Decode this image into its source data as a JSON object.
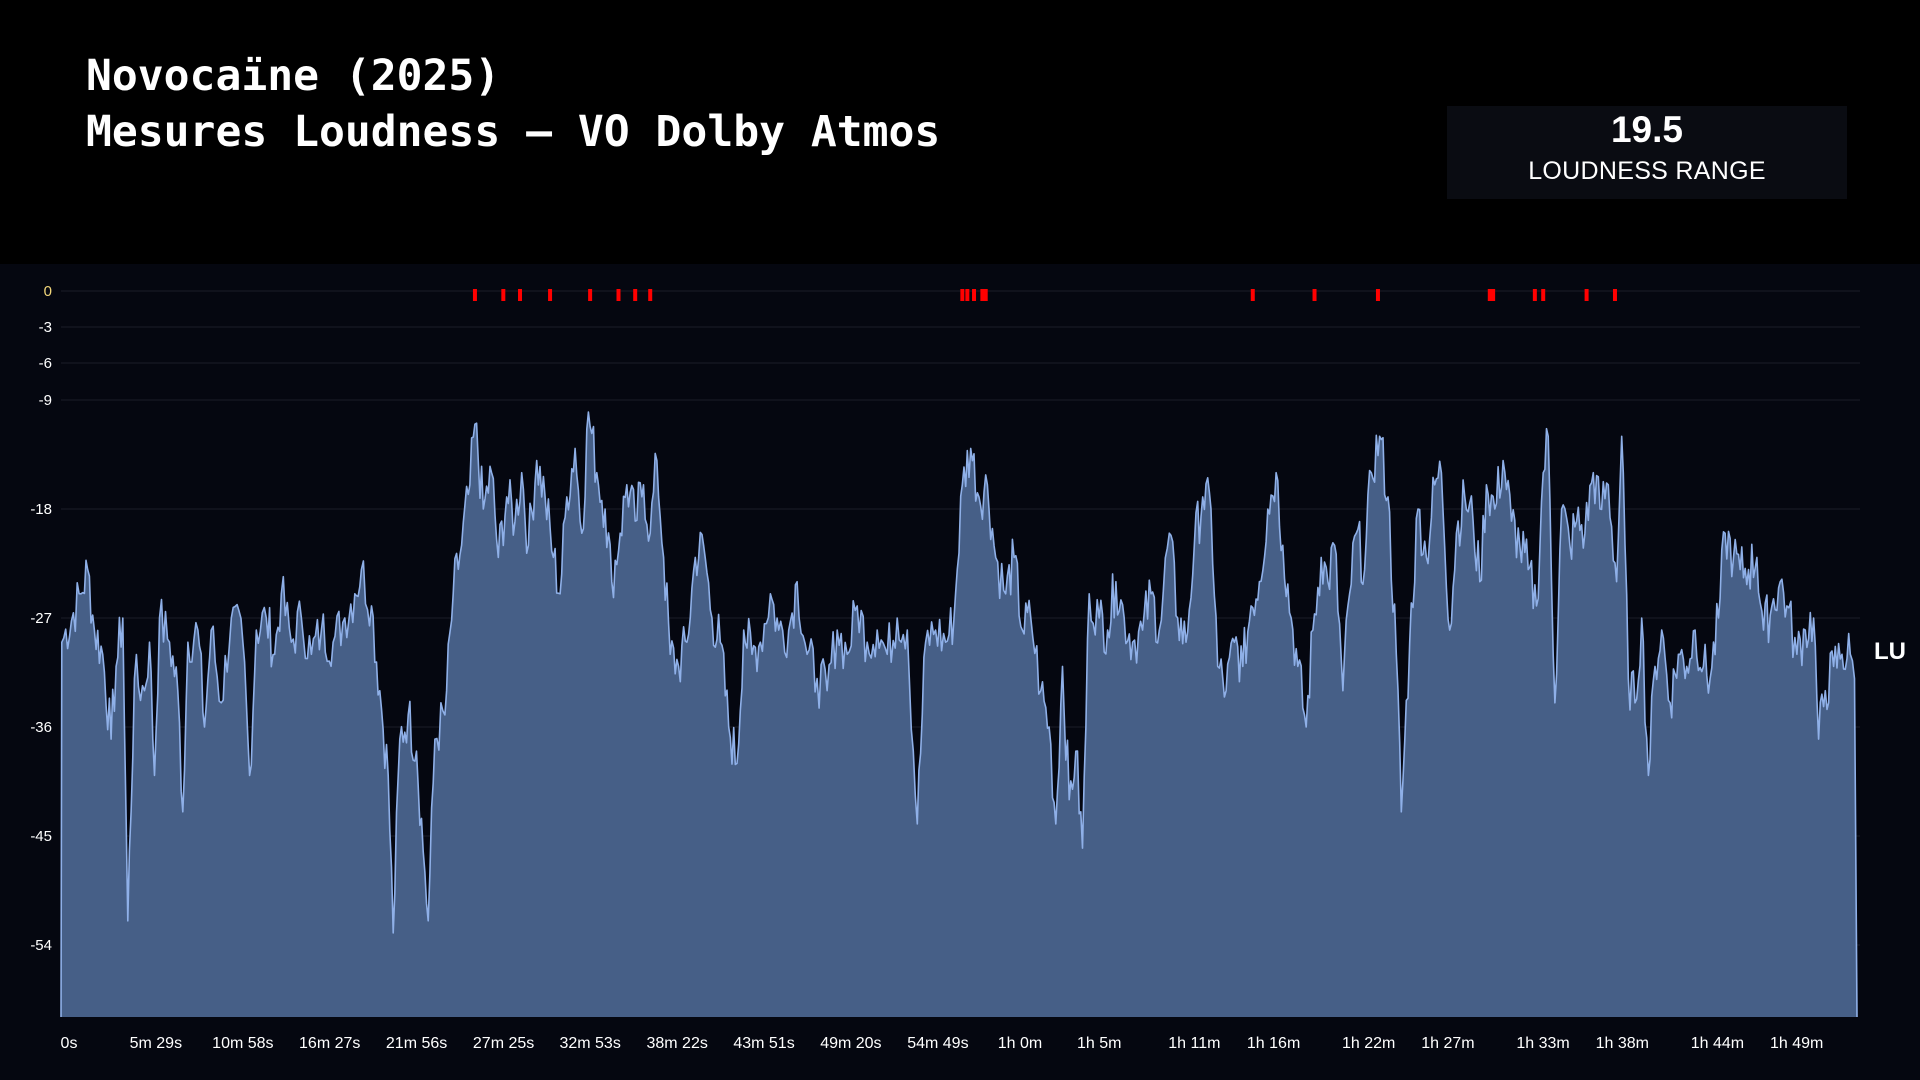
{
  "header": {
    "title_line1": "Novocaïne (2025)",
    "title_line2": "Mesures Loudness – VO Dolby Atmos"
  },
  "metric": {
    "value": "19.5",
    "label": "LOUDNESS RANGE"
  },
  "chart_data": {
    "type": "area",
    "series": [
      {
        "name": "LU",
        "color": "#8fb0e8",
        "anchors": [
          [
            0,
            -60
          ],
          [
            0.05,
            -29
          ],
          [
            1.2,
            -25
          ],
          [
            1.6,
            -23
          ],
          [
            2.0,
            -28
          ],
          [
            2.5,
            -30
          ],
          [
            3.0,
            -37
          ],
          [
            3.3,
            -31
          ],
          [
            3.7,
            -27
          ],
          [
            4.0,
            -52
          ],
          [
            4.4,
            -32
          ],
          [
            5.0,
            -33
          ],
          [
            5.3,
            -29
          ],
          [
            5.6,
            -40
          ],
          [
            5.9,
            -27
          ],
          [
            6.5,
            -29
          ],
          [
            7.0,
            -33
          ],
          [
            7.3,
            -43
          ],
          [
            7.6,
            -29
          ],
          [
            8.2,
            -28
          ],
          [
            8.6,
            -36
          ],
          [
            9.0,
            -28
          ],
          [
            9.6,
            -34
          ],
          [
            10.2,
            -27
          ],
          [
            10.9,
            -29
          ],
          [
            11.3,
            -40
          ],
          [
            11.7,
            -28
          ],
          [
            12.3,
            -27
          ],
          [
            12.8,
            -30
          ],
          [
            13.2,
            -25
          ],
          [
            13.8,
            -29
          ],
          [
            14.4,
            -27
          ],
          [
            15.0,
            -30
          ],
          [
            15.6,
            -28
          ],
          [
            16.3,
            -29
          ],
          [
            17.0,
            -27
          ],
          [
            17.6,
            -25
          ],
          [
            18.0,
            -23
          ],
          [
            18.6,
            -26
          ],
          [
            19.1,
            -33
          ],
          [
            19.6,
            -40
          ],
          [
            19.9,
            -53
          ],
          [
            20.3,
            -37
          ],
          [
            20.8,
            -35
          ],
          [
            21.3,
            -38
          ],
          [
            21.8,
            -48
          ],
          [
            22.0,
            -52
          ],
          [
            22.4,
            -37
          ],
          [
            23.0,
            -35
          ],
          [
            23.5,
            -25
          ],
          [
            24.0,
            -21
          ],
          [
            24.5,
            -16
          ],
          [
            24.8,
            -11
          ],
          [
            25.3,
            -18
          ],
          [
            25.8,
            -15
          ],
          [
            26.2,
            -22
          ],
          [
            26.7,
            -17
          ],
          [
            27.2,
            -19
          ],
          [
            27.6,
            -15
          ],
          [
            28.0,
            -21
          ],
          [
            28.5,
            -14
          ],
          [
            29.0,
            -17
          ],
          [
            29.5,
            -22
          ],
          [
            29.9,
            -25
          ],
          [
            30.3,
            -17
          ],
          [
            30.8,
            -13
          ],
          [
            31.2,
            -20
          ],
          [
            31.6,
            -10
          ],
          [
            32.1,
            -15
          ],
          [
            32.6,
            -18
          ],
          [
            33.0,
            -24
          ],
          [
            33.5,
            -20
          ],
          [
            33.9,
            -16
          ],
          [
            34.4,
            -19
          ],
          [
            34.9,
            -16
          ],
          [
            35.3,
            -20
          ],
          [
            35.7,
            -14
          ],
          [
            36.1,
            -22
          ],
          [
            36.5,
            -30
          ],
          [
            37.0,
            -31
          ],
          [
            37.5,
            -29
          ],
          [
            38.0,
            -22
          ],
          [
            38.5,
            -21
          ],
          [
            39.0,
            -27
          ],
          [
            39.5,
            -29
          ],
          [
            40.0,
            -36
          ],
          [
            40.5,
            -39
          ],
          [
            40.9,
            -28
          ],
          [
            41.4,
            -30
          ],
          [
            41.9,
            -29
          ],
          [
            42.5,
            -25
          ],
          [
            43.0,
            -28
          ],
          [
            43.6,
            -28
          ],
          [
            44.1,
            -24
          ],
          [
            44.7,
            -30
          ],
          [
            45.3,
            -32
          ],
          [
            45.9,
            -33
          ],
          [
            46.5,
            -28
          ],
          [
            47.1,
            -30
          ],
          [
            47.7,
            -26
          ],
          [
            48.3,
            -29
          ],
          [
            48.9,
            -28
          ],
          [
            49.5,
            -30
          ],
          [
            50.1,
            -27
          ],
          [
            50.7,
            -28
          ],
          [
            51.3,
            -44
          ],
          [
            51.8,
            -29
          ],
          [
            52.4,
            -28
          ],
          [
            53.0,
            -29
          ],
          [
            53.5,
            -27
          ],
          [
            54.0,
            -16
          ],
          [
            54.5,
            -13
          ],
          [
            55.0,
            -17
          ],
          [
            55.5,
            -16
          ],
          [
            56.0,
            -22
          ],
          [
            56.6,
            -25
          ],
          [
            57.1,
            -22
          ],
          [
            57.6,
            -28
          ],
          [
            58.1,
            -27
          ],
          [
            58.7,
            -33
          ],
          [
            59.2,
            -36
          ],
          [
            59.6,
            -44
          ],
          [
            60.0,
            -31
          ],
          [
            60.4,
            -42
          ],
          [
            60.8,
            -38
          ],
          [
            61.2,
            -46
          ],
          [
            61.6,
            -25
          ],
          [
            62.2,
            -27
          ],
          [
            62.7,
            -28
          ],
          [
            63.2,
            -24
          ],
          [
            63.7,
            -27
          ],
          [
            64.2,
            -29
          ],
          [
            64.8,
            -28
          ],
          [
            65.3,
            -25
          ],
          [
            65.8,
            -28
          ],
          [
            66.4,
            -20
          ],
          [
            66.9,
            -27
          ],
          [
            67.4,
            -29
          ],
          [
            67.9,
            -21
          ],
          [
            68.4,
            -17
          ],
          [
            68.9,
            -18
          ],
          [
            69.3,
            -31
          ],
          [
            69.8,
            -33
          ],
          [
            70.3,
            -29
          ],
          [
            70.8,
            -31
          ],
          [
            71.3,
            -26
          ],
          [
            71.8,
            -24
          ],
          [
            72.3,
            -18
          ],
          [
            72.8,
            -15
          ],
          [
            73.2,
            -21
          ],
          [
            73.7,
            -27
          ],
          [
            74.1,
            -31
          ],
          [
            74.6,
            -36
          ],
          [
            75.0,
            -28
          ],
          [
            75.5,
            -22
          ],
          [
            75.9,
            -24
          ],
          [
            76.3,
            -21
          ],
          [
            76.8,
            -33
          ],
          [
            77.2,
            -25
          ],
          [
            77.6,
            -20
          ],
          [
            78.1,
            -23
          ],
          [
            78.5,
            -15
          ],
          [
            79.0,
            -12
          ],
          [
            79.5,
            -17
          ],
          [
            80.0,
            -30
          ],
          [
            80.3,
            -43
          ],
          [
            80.8,
            -29
          ],
          [
            81.3,
            -18
          ],
          [
            81.8,
            -22
          ],
          [
            82.3,
            -16
          ],
          [
            82.7,
            -15
          ],
          [
            83.2,
            -28
          ],
          [
            83.6,
            -20
          ],
          [
            84.1,
            -17
          ],
          [
            84.6,
            -19
          ],
          [
            85.0,
            -24
          ],
          [
            85.4,
            -16
          ],
          [
            85.9,
            -18
          ],
          [
            86.4,
            -14
          ],
          [
            86.9,
            -19
          ],
          [
            87.4,
            -21
          ],
          [
            87.9,
            -23
          ],
          [
            88.4,
            -26
          ],
          [
            88.8,
            -15
          ],
          [
            89.1,
            -12
          ],
          [
            89.5,
            -34
          ],
          [
            89.9,
            -18
          ],
          [
            90.4,
            -21
          ],
          [
            90.8,
            -19
          ],
          [
            91.3,
            -20
          ],
          [
            91.8,
            -15
          ],
          [
            92.2,
            -18
          ],
          [
            92.7,
            -16
          ],
          [
            93.2,
            -24
          ],
          [
            93.5,
            -12
          ],
          [
            93.9,
            -32
          ],
          [
            94.3,
            -34
          ],
          [
            94.7,
            -27
          ],
          [
            95.1,
            -40
          ],
          [
            95.5,
            -31
          ],
          [
            95.9,
            -28
          ],
          [
            96.4,
            -34
          ],
          [
            96.9,
            -30
          ],
          [
            97.4,
            -31
          ],
          [
            97.9,
            -28
          ],
          [
            98.4,
            -31
          ],
          [
            98.8,
            -32
          ],
          [
            99.3,
            -27
          ],
          [
            99.7,
            -20
          ],
          [
            100.2,
            -22
          ],
          [
            100.6,
            -23
          ],
          [
            101.1,
            -23
          ],
          [
            101.6,
            -22
          ],
          [
            102.0,
            -28
          ],
          [
            102.5,
            -26
          ],
          [
            103.0,
            -24
          ],
          [
            103.4,
            -26
          ],
          [
            104.0,
            -30
          ],
          [
            104.5,
            -28
          ],
          [
            105.0,
            -27
          ],
          [
            105.3,
            -37
          ],
          [
            105.7,
            -33
          ],
          [
            106.2,
            -31
          ],
          [
            106.7,
            -30
          ],
          [
            107.2,
            -30
          ],
          [
            107.45,
            -32
          ],
          [
            107.6,
            -60
          ]
        ]
      }
    ],
    "x_range": [
      0,
      107.6
    ],
    "x_unit": "minutes",
    "y_range": [
      -60,
      0
    ],
    "yticks": [
      0,
      -3,
      -6,
      -9,
      -18,
      -27,
      -36,
      -45,
      -54
    ],
    "xticks": [
      {
        "label": "0s",
        "value": 0
      },
      {
        "label": "5m 29s",
        "value": 5.48
      },
      {
        "label": "10m 58s",
        "value": 10.97
      },
      {
        "label": "16m 27s",
        "value": 16.45
      },
      {
        "label": "21m 56s",
        "value": 21.93
      },
      {
        "label": "27m 25s",
        "value": 27.42
      },
      {
        "label": "32m 53s",
        "value": 32.88
      },
      {
        "label": "38m 22s",
        "value": 38.37
      },
      {
        "label": "43m 51s",
        "value": 43.85
      },
      {
        "label": "49m 20s",
        "value": 49.33
      },
      {
        "label": "54m 49s",
        "value": 54.82
      },
      {
        "label": "1h 0m",
        "value": 60.0
      },
      {
        "label": "1h 5m",
        "value": 65.0
      },
      {
        "label": "1h 11m",
        "value": 71.0
      },
      {
        "label": "1h 16m",
        "value": 76.0
      },
      {
        "label": "1h 22m",
        "value": 82.0
      },
      {
        "label": "1h 27m",
        "value": 87.0
      },
      {
        "label": "1h 33m",
        "value": 93.0
      },
      {
        "label": "1h 38m",
        "value": 98.0
      },
      {
        "label": "1h 44m",
        "value": 104.0
      },
      {
        "label": "1h 49m",
        "value": 109.0
      }
    ],
    "peak_markers": {
      "color": "#ff0000",
      "level": 0,
      "times": [
        24.8,
        26.5,
        27.5,
        29.3,
        31.7,
        33.4,
        34.4,
        35.3,
        54.0,
        54.3,
        54.7,
        55.2,
        55.4,
        71.4,
        75.1,
        78.9,
        85.6,
        85.8,
        88.3,
        88.8,
        91.4,
        93.1
      ],
      "widths": [
        1,
        1,
        1,
        1,
        1,
        1,
        1,
        1,
        1,
        1,
        1,
        1,
        1,
        1,
        1,
        1,
        1,
        1,
        1,
        1,
        1,
        1
      ]
    },
    "right_label": "LU",
    "grid": true,
    "colors": {
      "fill": "#465f87",
      "line": "#8fb0e8",
      "tick_zero": "#f2d67a",
      "tick": "#ffffff"
    }
  }
}
